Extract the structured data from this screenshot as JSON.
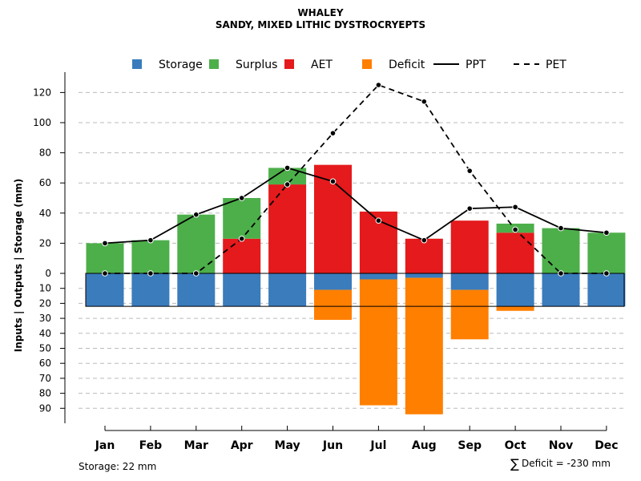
{
  "chart_data": {
    "type": "bar",
    "title": "WHALEY",
    "subtitle": "SANDY, MIXED LITHIC DYSTROCRYEPTS",
    "ylabel": "Inputs | Outputs | Storage    (mm)",
    "categories": [
      "Jan",
      "Feb",
      "Mar",
      "Apr",
      "May",
      "Jun",
      "Jul",
      "Aug",
      "Sep",
      "Oct",
      "Nov",
      "Dec"
    ],
    "ylim_upper": [
      0,
      130
    ],
    "ylim_lower": [
      0,
      100
    ],
    "upper_ticks": [
      "0",
      "20",
      "40",
      "60",
      "80",
      "100",
      "120"
    ],
    "lower_ticks": [
      "10",
      "20",
      "30",
      "40",
      "50",
      "60",
      "70",
      "80",
      "90"
    ],
    "storage_capacity": 22,
    "legend": [
      {
        "key": "storage",
        "label": "Storage",
        "kind": "box"
      },
      {
        "key": "surplus",
        "label": "Surplus",
        "kind": "box"
      },
      {
        "key": "aet",
        "label": "AET",
        "kind": "box"
      },
      {
        "key": "deficit",
        "label": "Deficit",
        "kind": "box"
      },
      {
        "key": "ppt",
        "label": "PPT",
        "kind": "solid"
      },
      {
        "key": "pet",
        "label": "PET",
        "kind": "dashed"
      }
    ],
    "series": {
      "AET": [
        0,
        0,
        0,
        23,
        59,
        72,
        41,
        23,
        35,
        27,
        0,
        0
      ],
      "Surplus": [
        20,
        22,
        39,
        27,
        11,
        0,
        0,
        0,
        0,
        6,
        30,
        27
      ],
      "Storage": [
        22,
        22,
        22,
        22,
        22,
        11,
        4,
        3,
        11,
        22,
        22,
        22
      ],
      "Deficit": [
        0,
        0,
        0,
        0,
        0,
        20,
        84,
        91,
        33,
        3,
        0,
        0
      ],
      "PPT": [
        20,
        22,
        39,
        50,
        70,
        61,
        35,
        22,
        43,
        44,
        30,
        27
      ],
      "PET": [
        0,
        0,
        0,
        23,
        59,
        93,
        125,
        114,
        68,
        29,
        0,
        0
      ]
    },
    "colors": {
      "storage": "#3a7cbc",
      "surplus": "#4daf4a",
      "aet": "#e41a1c",
      "deficit": "#ff7f00",
      "grid": "#bbbbbb"
    }
  },
  "footer": {
    "storage_text": "Storage: 22 mm",
    "deficit_symbol": "∑",
    "deficit_text": "Deficit = -230 mm"
  }
}
